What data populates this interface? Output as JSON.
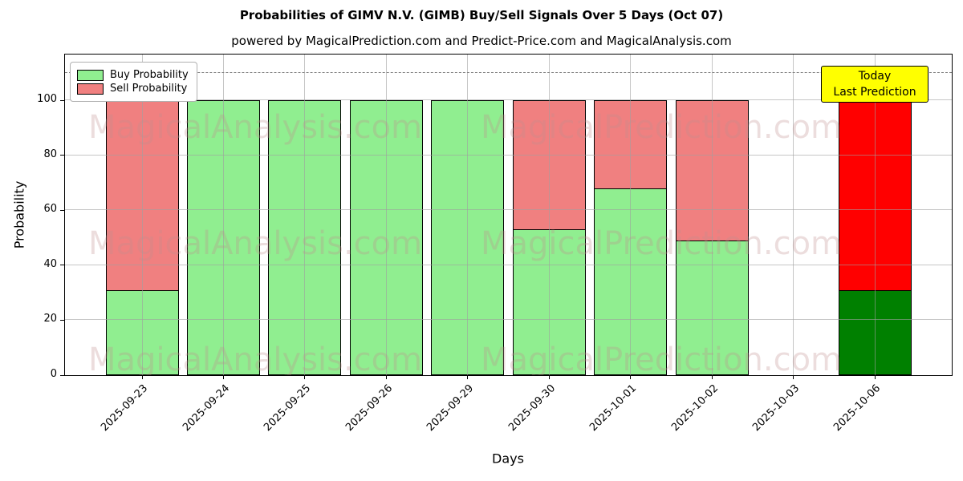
{
  "title": "Probabilities of GIMV N.V. (GIMB) Buy/Sell Signals Over 5 Days (Oct 07)",
  "subtitle": "powered by MagicalPrediction.com and Predict-Price.com and MagicalAnalysis.com",
  "x_axis_label": "Days",
  "y_axis_label": "Probability",
  "legend": {
    "position": "upper left",
    "items": [
      {
        "label": "Buy Probability",
        "color": "#90ee90"
      },
      {
        "label": "Sell Probability",
        "color": "#f08080"
      }
    ]
  },
  "annotation_box": {
    "line1": "Today",
    "line2": "Last Prediction",
    "bg_color": "#ffff00",
    "border_color": "#000000"
  },
  "watermarks": [
    "MagicalAnalysis.com",
    "MagicalPrediction.com"
  ],
  "chart_data": {
    "type": "bar",
    "stacked": true,
    "title": "Probabilities of GIMV N.V. (GIMB) Buy/Sell Signals Over 5 Days (Oct 07)",
    "xlabel": "Days",
    "ylabel": "Probability",
    "categories": [
      "2025-09-23",
      "2025-09-24",
      "2025-09-25",
      "2025-09-26",
      "2025-09-29",
      "2025-09-30",
      "2025-10-01",
      "2025-10-02",
      "2025-10-03",
      "2025-10-06"
    ],
    "series": [
      {
        "name": "Buy Probability",
        "values": [
          31,
          100,
          100,
          100,
          100,
          53,
          68,
          49,
          null,
          31
        ],
        "colors": [
          "#90ee90",
          "#90ee90",
          "#90ee90",
          "#90ee90",
          "#90ee90",
          "#90ee90",
          "#90ee90",
          "#90ee90",
          null,
          "#008000"
        ]
      },
      {
        "name": "Sell Probability",
        "values": [
          69,
          0,
          0,
          0,
          0,
          47,
          32,
          51,
          null,
          69
        ],
        "colors": [
          "#f08080",
          "#f08080",
          "#f08080",
          "#f08080",
          "#f08080",
          "#f08080",
          "#f08080",
          "#f08080",
          null,
          "#ff0000"
        ]
      }
    ],
    "y_ticks": [
      0,
      20,
      40,
      60,
      80,
      100
    ],
    "ylim": [
      0,
      117
    ],
    "dashed_line_y": 110,
    "grid": true,
    "legend_position": "upper left",
    "today_index": 9
  }
}
